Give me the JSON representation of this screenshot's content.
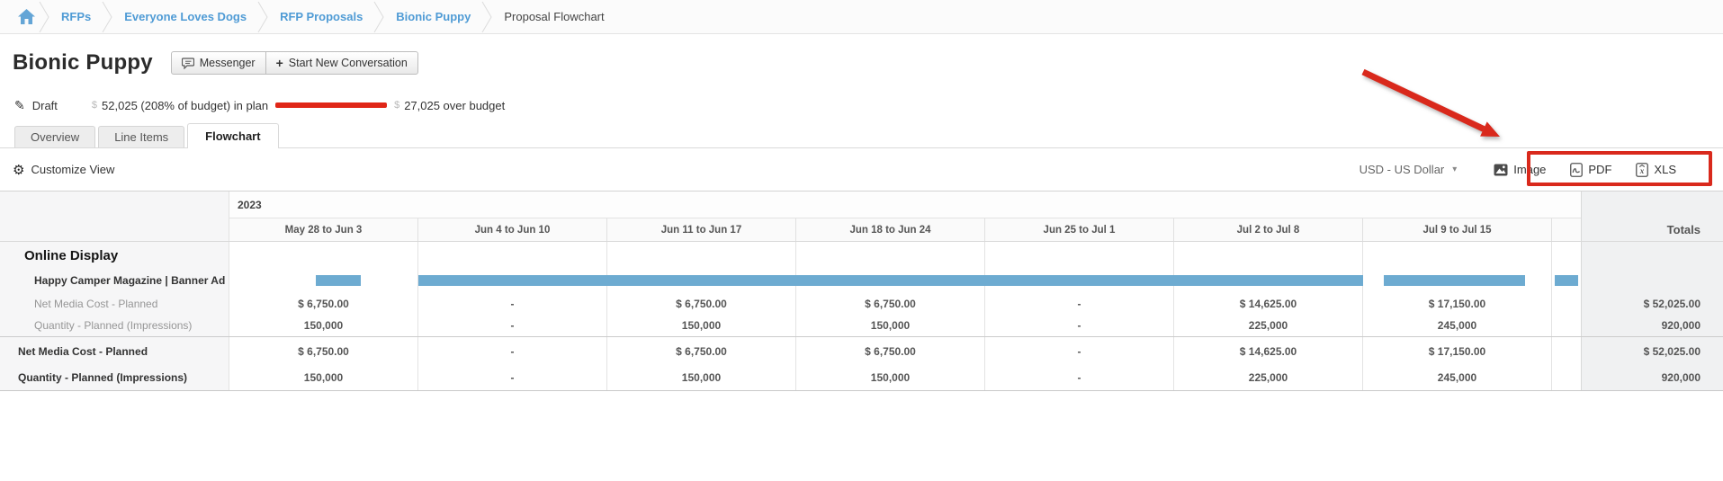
{
  "colors": {
    "link_blue": "#4f9bd5",
    "accent_red": "#d9291c",
    "status_red": "#e02617",
    "bar_blue": "#6dabd1",
    "totals_bg": "#f0f1f2"
  },
  "icons": {
    "gear": "⚙",
    "pencil": "✎",
    "caret_down": "▾",
    "plus": "+"
  },
  "breadcrumb": {
    "links": [
      "RFPs",
      "Everyone Loves Dogs",
      "RFP Proposals",
      "Bionic Puppy"
    ],
    "current": "Proposal Flowchart"
  },
  "header": {
    "title": "Bionic Puppy",
    "messenger_label": "Messenger",
    "start_conversation_label": "Start New Conversation"
  },
  "status": {
    "state": "Draft",
    "currency_symbol": "$",
    "in_plan": "52,025 (208% of budget) in plan",
    "over_budget": "27,025 over budget"
  },
  "tabs": [
    {
      "label": "Overview",
      "active": false
    },
    {
      "label": "Line Items",
      "active": false
    },
    {
      "label": "Flowchart",
      "active": true
    }
  ],
  "toolbar": {
    "customize_label": "Customize View",
    "currency_value": "USD - US Dollar",
    "exports": [
      {
        "name": "image",
        "label": "Image"
      },
      {
        "name": "pdf",
        "label": "PDF"
      },
      {
        "name": "xls",
        "label": "XLS"
      }
    ]
  },
  "flowchart": {
    "year": "2023",
    "week_columns": [
      "May 28 to Jun 3",
      "Jun 4 to Jun 10",
      "Jun 11 to Jun 17",
      "Jun 18 to Jun 24",
      "Jun 25 to Jul 1",
      "Jul 2 to Jul 8",
      "Jul 9 to Jul 15"
    ],
    "totals_label": "Totals",
    "group": {
      "name": "Online Display",
      "line_item": "Happy Camper Magazine | Banner Ad",
      "bars": [
        {
          "left_pct": 6.4,
          "width_pct": 3.3
        },
        {
          "left_pct": 14.0,
          "width_pct": 69.9
        },
        {
          "left_pct": 85.4,
          "width_pct": 10.5
        },
        {
          "left_pct": 98.1,
          "width_pct": 1.7
        }
      ],
      "metrics": [
        {
          "label": "Net Media Cost - Planned",
          "cells": [
            "$ 6,750.00",
            "-",
            "$ 6,750.00",
            "$ 6,750.00",
            "-",
            "$ 14,625.00",
            "$ 17,150.00"
          ],
          "total": "$ 52,025.00"
        },
        {
          "label": "Quantity - Planned (Impressions)",
          "cells": [
            "150,000",
            "-",
            "150,000",
            "150,000",
            "-",
            "225,000",
            "245,000"
          ],
          "total": "920,000"
        }
      ]
    },
    "summary_metrics": [
      {
        "label": "Net Media Cost - Planned",
        "cells": [
          "$ 6,750.00",
          "-",
          "$ 6,750.00",
          "$ 6,750.00",
          "-",
          "$ 14,625.00",
          "$ 17,150.00"
        ],
        "total": "$ 52,025.00"
      },
      {
        "label": "Quantity - Planned (Impressions)",
        "cells": [
          "150,000",
          "-",
          "150,000",
          "150,000",
          "-",
          "225,000",
          "245,000"
        ],
        "total": "920,000"
      }
    ]
  }
}
